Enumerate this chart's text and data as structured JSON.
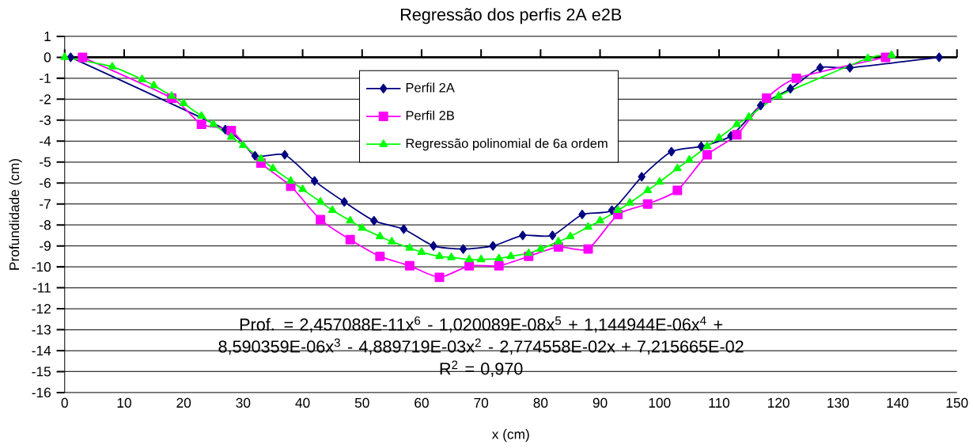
{
  "chart_data": {
    "type": "line",
    "title": "Regressão dos perfis 2A e2B",
    "xlabel": "x (cm)",
    "ylabel": "Profundidade (cm)",
    "xlim": [
      0,
      150
    ],
    "xticks": [
      0,
      10,
      20,
      30,
      40,
      50,
      60,
      70,
      80,
      90,
      100,
      110,
      120,
      130,
      140,
      150
    ],
    "ylim": [
      -16,
      1
    ],
    "yticks": [
      -16,
      -15,
      -14,
      -13,
      -12,
      -11,
      -10,
      -9,
      -8,
      -7,
      -6,
      -5,
      -4,
      -3,
      -2,
      -1,
      0,
      1
    ],
    "grid": "y",
    "legend": "top",
    "series": [
      {
        "name": "Perfil 2A",
        "color": "#000080",
        "marker": "diamond",
        "x": [
          1,
          27,
          32,
          37,
          42,
          47,
          52,
          57,
          62,
          67,
          72,
          77,
          82,
          87,
          92,
          97,
          102,
          107,
          112,
          117,
          122,
          127,
          132,
          147
        ],
        "values": [
          0,
          -3.45,
          -4.7,
          -4.65,
          -5.9,
          -6.9,
          -7.8,
          -8.2,
          -9.0,
          -9.15,
          -9.0,
          -8.5,
          -8.5,
          -7.5,
          -7.3,
          -5.7,
          -4.5,
          -4.25,
          -3.75,
          -2.3,
          -1.5,
          -0.5,
          -0.5,
          0
        ]
      },
      {
        "name": "Perfil 2B",
        "color": "#ff00ff",
        "marker": "square",
        "x": [
          3,
          18,
          23,
          28,
          33,
          38,
          43,
          48,
          53,
          58,
          63,
          68,
          73,
          78,
          83,
          88,
          93,
          98,
          103,
          108,
          113,
          118,
          123,
          138
        ],
        "values": [
          0,
          -1.95,
          -3.2,
          -3.5,
          -5.05,
          -6.15,
          -7.75,
          -8.7,
          -9.5,
          -9.95,
          -10.5,
          -9.95,
          -9.95,
          -9.5,
          -9.05,
          -9.15,
          -7.5,
          -7.0,
          -6.35,
          -4.65,
          -3.7,
          -1.95,
          -1.0,
          0
        ]
      },
      {
        "name": "Regressão polinomial de 6a ordem",
        "color": "#00ff00",
        "marker": "triangle",
        "x": [
          0,
          8,
          13,
          15,
          18,
          20,
          23,
          25,
          28,
          30,
          33,
          35,
          38,
          40,
          43,
          45,
          48,
          50,
          53,
          55,
          58,
          60,
          63,
          65,
          68,
          70,
          73,
          75,
          78,
          80,
          83,
          85,
          88,
          90,
          93,
          95,
          98,
          100,
          103,
          105,
          108,
          110,
          113,
          115,
          120,
          135,
          139
        ],
        "values": [
          0,
          -0.45,
          -1.05,
          -1.35,
          -1.85,
          -2.2,
          -2.8,
          -3.2,
          -3.8,
          -4.2,
          -4.85,
          -5.3,
          -5.9,
          -6.3,
          -6.9,
          -7.3,
          -7.8,
          -8.15,
          -8.55,
          -8.8,
          -9.1,
          -9.3,
          -9.5,
          -9.55,
          -9.65,
          -9.65,
          -9.6,
          -9.5,
          -9.35,
          -9.15,
          -8.8,
          -8.55,
          -8.1,
          -7.8,
          -7.3,
          -6.95,
          -6.35,
          -5.95,
          -5.3,
          -4.9,
          -4.25,
          -3.85,
          -3.2,
          -2.85,
          -1.85,
          -0.05,
          0.1
        ]
      }
    ],
    "annotations": [
      "Prof. = 2,457088E-11x$^{6}$ - 1,020089E-08x$^{5}$ + 1,144944E-06x$^{4}$ + 8,590359E-06x$^{3}$ - 4,889719E-03x$^{2}$ - 2,774558E-02x + 7,215665E-02",
      "R$^{2}$ = 0,970"
    ]
  }
}
